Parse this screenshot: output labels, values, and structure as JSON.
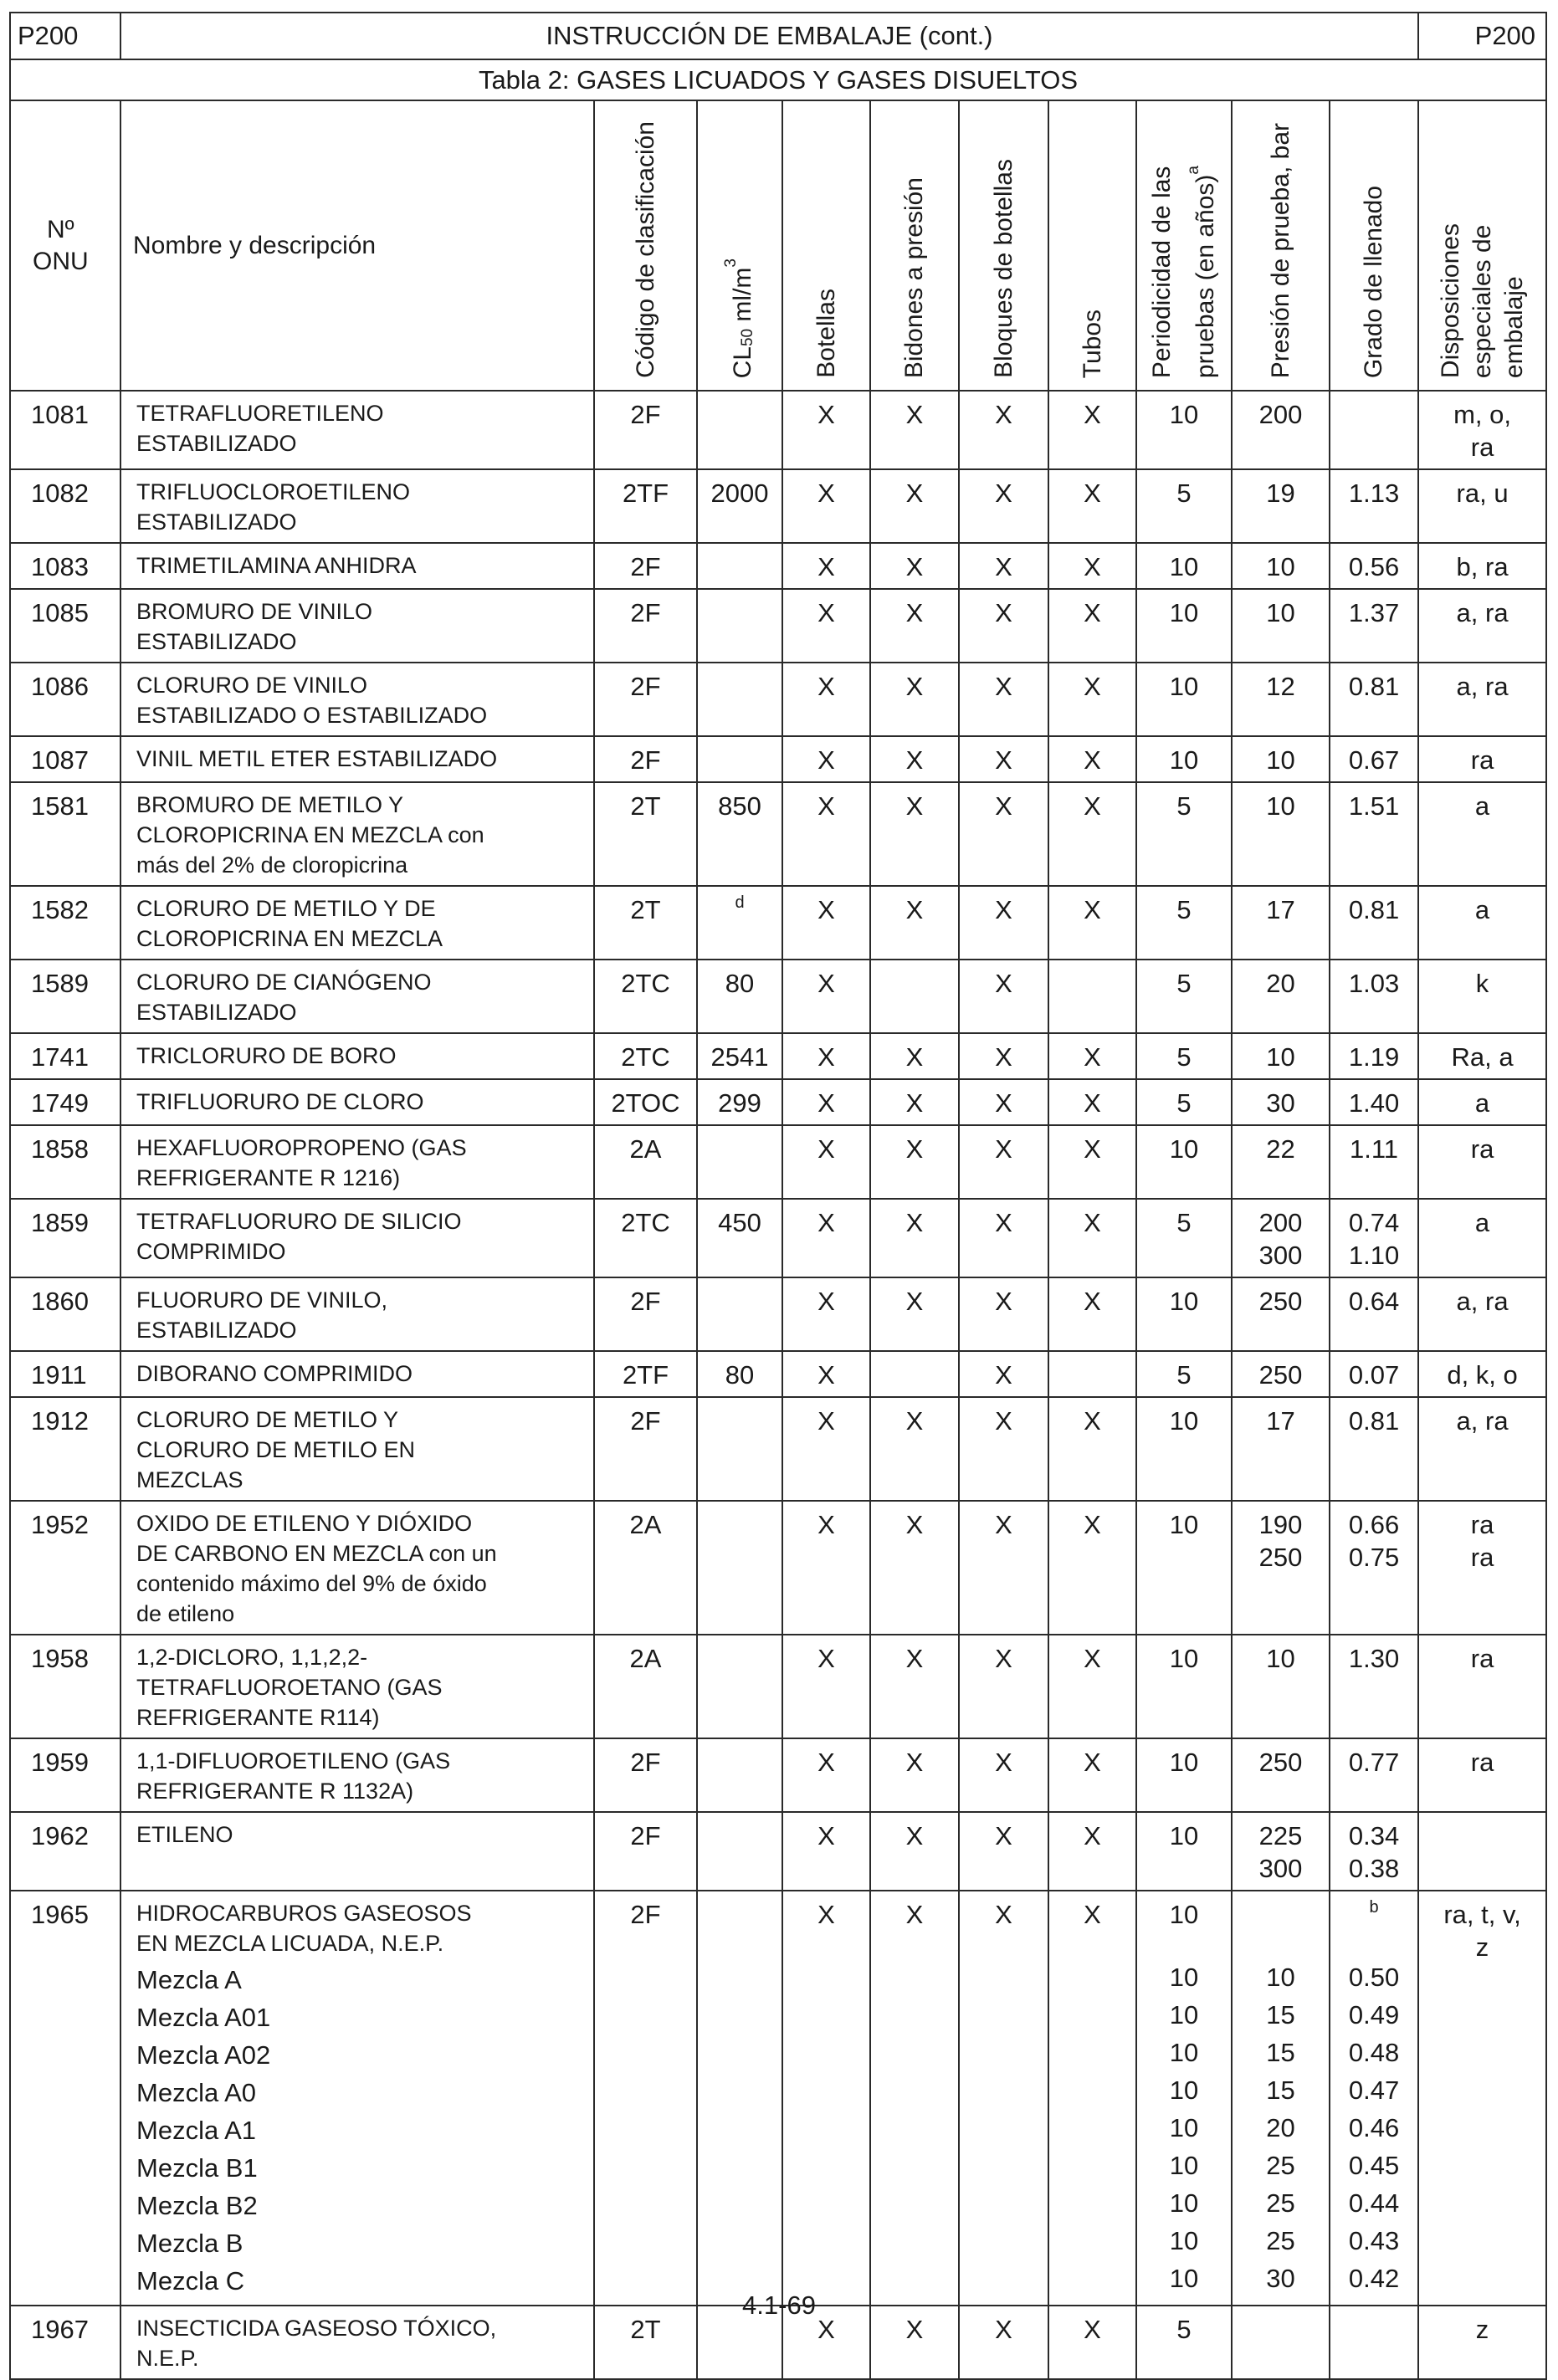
{
  "header": {
    "left_code": "P200",
    "title": "INSTRUCCIÓN DE EMBALAJE (cont.)",
    "right_code": "P200"
  },
  "table_title": "Tabla 2: GASES LICUADOS Y GASES DISUELTOS",
  "columns": {
    "onu": "Nº\nONU",
    "name": "Nombre y descripción",
    "class_code": "Código de clasificación",
    "cl50_prefix": "CL",
    "cl50_sub": "50",
    "cl50_suffix": " ml/m",
    "cl50_sup": "3",
    "cylinders": "Botellas",
    "pressure_drums": "Bidones a presión",
    "bundles": "Bloques de botellas",
    "tubes": "Tubos",
    "test_period": "Periodicidad de las\npruebas (en años)",
    "test_period_sup": "a",
    "test_pressure": "Presión de prueba, bar",
    "filling": "Grado de llenado",
    "special": "Disposiciones\nespeciales de\nembalaje"
  },
  "rows": [
    {
      "onu": "1081",
      "name": [
        "TETRAFLUORETILENO",
        "ESTABILIZADO"
      ],
      "code": "2F",
      "cl50": "",
      "bot": "X",
      "bid": "X",
      "blo": "X",
      "tub": "X",
      "period": [
        "10"
      ],
      "pressure": [
        "200"
      ],
      "fill": [
        ""
      ],
      "special": [
        "m, o,",
        "ra"
      ]
    },
    {
      "onu": "1082",
      "name": [
        "TRIFLUOCLOROETILENO",
        "ESTABILIZADO"
      ],
      "code": "2TF",
      "cl50": "2000",
      "bot": "X",
      "bid": "X",
      "blo": "X",
      "tub": "X",
      "period": [
        "5"
      ],
      "pressure": [
        "19"
      ],
      "fill": [
        "1.13"
      ],
      "special": [
        "ra, u"
      ]
    },
    {
      "onu": "1083",
      "name": [
        "TRIMETILAMINA ANHIDRA"
      ],
      "code": "2F",
      "cl50": "",
      "bot": "X",
      "bid": "X",
      "blo": "X",
      "tub": "X",
      "period": [
        "10"
      ],
      "pressure": [
        "10"
      ],
      "fill": [
        "0.56"
      ],
      "special": [
        "b, ra"
      ]
    },
    {
      "onu": "1085",
      "name": [
        "BROMURO DE VINILO",
        "ESTABILIZADO"
      ],
      "code": "2F",
      "cl50": "",
      "bot": "X",
      "bid": "X",
      "blo": "X",
      "tub": "X",
      "period": [
        "10"
      ],
      "pressure": [
        "10"
      ],
      "fill": [
        "1.37"
      ],
      "special": [
        "a, ra"
      ]
    },
    {
      "onu": "1086",
      "name": [
        "CLORURO DE VINILO",
        "ESTABILIZADO O ESTABILIZADO"
      ],
      "code": "2F",
      "cl50": "",
      "bot": "X",
      "bid": "X",
      "blo": "X",
      "tub": "X",
      "period": [
        "10"
      ],
      "pressure": [
        "12"
      ],
      "fill": [
        "0.81"
      ],
      "special": [
        "a, ra"
      ]
    },
    {
      "onu": "1087",
      "name": [
        "VINIL METIL ETER ESTABILIZADO"
      ],
      "code": "2F",
      "cl50": "",
      "bot": "X",
      "bid": "X",
      "blo": "X",
      "tub": "X",
      "period": [
        "10"
      ],
      "pressure": [
        "10"
      ],
      "fill": [
        "0.67"
      ],
      "special": [
        "ra"
      ]
    },
    {
      "onu": "1581",
      "name": [
        "BROMURO DE METILO Y",
        "CLOROPICRINA EN MEZCLA con",
        "más del 2% de cloropicrina"
      ],
      "code": "2T",
      "cl50": "850",
      "bot": "X",
      "bid": "X",
      "blo": "X",
      "tub": "X",
      "period": [
        "5"
      ],
      "pressure": [
        "10"
      ],
      "fill": [
        "1.51"
      ],
      "special": [
        "a"
      ]
    },
    {
      "onu": "1582",
      "name": [
        "CLORURO DE METILO Y DE",
        "CLOROPICRINA EN MEZCLA"
      ],
      "code": "2T",
      "cl50": "",
      "cl50_note": "d",
      "bot": "X",
      "bid": "X",
      "blo": "X",
      "tub": "X",
      "period": [
        "5"
      ],
      "pressure": [
        "17"
      ],
      "fill": [
        "0.81"
      ],
      "special": [
        "a"
      ]
    },
    {
      "onu": "1589",
      "name": [
        "CLORURO DE CIANÓGENO",
        "ESTABILIZADO"
      ],
      "code": "2TC",
      "cl50": "80",
      "bot": "X",
      "bid": "",
      "blo": "X",
      "tub": "",
      "period": [
        "5"
      ],
      "pressure": [
        "20"
      ],
      "fill": [
        "1.03"
      ],
      "special": [
        "k"
      ]
    },
    {
      "onu": "1741",
      "name": [
        "TRICLORURO DE BORO"
      ],
      "code": "2TC",
      "cl50": "2541",
      "bot": "X",
      "bid": "X",
      "blo": "X",
      "tub": "X",
      "period": [
        "5"
      ],
      "pressure": [
        "10"
      ],
      "fill": [
        "1.19"
      ],
      "special": [
        "Ra, a"
      ]
    },
    {
      "onu": "1749",
      "name": [
        "TRIFLUORURO DE CLORO"
      ],
      "code": "2TOC",
      "cl50": "299",
      "bot": "X",
      "bid": "X",
      "blo": "X",
      "tub": "X",
      "period": [
        "5"
      ],
      "pressure": [
        "30"
      ],
      "fill": [
        "1.40"
      ],
      "special": [
        "a"
      ]
    },
    {
      "onu": "1858",
      "name": [
        "HEXAFLUOROPROPENO (GAS",
        "REFRIGERANTE R 1216)"
      ],
      "code": "2A",
      "cl50": "",
      "bot": "X",
      "bid": "X",
      "blo": "X",
      "tub": "X",
      "period": [
        "10"
      ],
      "pressure": [
        "22"
      ],
      "fill": [
        "1.11"
      ],
      "special": [
        "ra"
      ]
    },
    {
      "onu": "1859",
      "name": [
        "TETRAFLUORURO DE SILICIO",
        "COMPRIMIDO"
      ],
      "code": "2TC",
      "cl50": "450",
      "bot": "X",
      "bid": "X",
      "blo": "X",
      "tub": "X",
      "period": [
        "5"
      ],
      "pressure": [
        "200",
        "300"
      ],
      "fill": [
        "0.74",
        "1.10"
      ],
      "special": [
        "a"
      ]
    },
    {
      "onu": "1860",
      "name": [
        "FLUORURO DE VINILO,",
        "ESTABILIZADO"
      ],
      "code": "2F",
      "cl50": "",
      "bot": "X",
      "bid": "X",
      "blo": "X",
      "tub": "X",
      "period": [
        "10"
      ],
      "pressure": [
        "250"
      ],
      "fill": [
        "0.64"
      ],
      "special": [
        "a, ra"
      ]
    },
    {
      "onu": "1911",
      "name": [
        "DIBORANO COMPRIMIDO"
      ],
      "code": "2TF",
      "cl50": "80",
      "bot": "X",
      "bid": "",
      "blo": "X",
      "tub": "",
      "period": [
        "5"
      ],
      "pressure": [
        "250"
      ],
      "fill": [
        "0.07"
      ],
      "special": [
        "d, k, o"
      ]
    },
    {
      "onu": "1912",
      "name": [
        "CLORURO DE METILO Y",
        "CLORURO DE METILO EN",
        "MEZCLAS"
      ],
      "code": "2F",
      "cl50": "",
      "bot": "X",
      "bid": "X",
      "blo": "X",
      "tub": "X",
      "period": [
        "10"
      ],
      "pressure": [
        "17"
      ],
      "fill": [
        "0.81"
      ],
      "special": [
        "a, ra"
      ]
    },
    {
      "onu": "1952",
      "name": [
        "OXIDO DE ETILENO Y DIÓXIDO",
        "DE CARBONO EN MEZCLA con un",
        "contenido máximo del 9% de óxido",
        "de etileno"
      ],
      "code": "2A",
      "cl50": "",
      "bot": "X",
      "bid": "X",
      "blo": "X",
      "tub": "X",
      "period": [
        "10"
      ],
      "pressure": [
        "190",
        "250"
      ],
      "fill": [
        "0.66",
        "0.75"
      ],
      "special": [
        "ra",
        "ra"
      ]
    },
    {
      "onu": "1958",
      "name": [
        "1,2-DICLORO, 1,1,2,2-",
        "TETRAFLUOROETANO (GAS",
        "REFRIGERANTE R114)"
      ],
      "code": "2A",
      "cl50": "",
      "bot": "X",
      "bid": "X",
      "blo": "X",
      "tub": "X",
      "period": [
        "10"
      ],
      "pressure": [
        "10"
      ],
      "fill": [
        "1.30"
      ],
      "special": [
        "ra"
      ]
    },
    {
      "onu": "1959",
      "name": [
        "1,1-DIFLUOROETILENO (GAS",
        "REFRIGERANTE R 1132A)"
      ],
      "code": "2F",
      "cl50": "",
      "bot": "X",
      "bid": "X",
      "blo": "X",
      "tub": "X",
      "period": [
        "10"
      ],
      "pressure": [
        "250"
      ],
      "fill": [
        "0.77"
      ],
      "special": [
        "ra"
      ]
    },
    {
      "onu": "1962",
      "name": [
        "ETILENO"
      ],
      "code": "2F",
      "cl50": "",
      "bot": "X",
      "bid": "X",
      "blo": "X",
      "tub": "X",
      "period": [
        "10"
      ],
      "pressure": [
        "225",
        "300"
      ],
      "fill": [
        "0.34",
        "0.38"
      ],
      "special": [
        ""
      ]
    }
  ],
  "row_1965": {
    "onu": "1965",
    "name": [
      "HIDROCARBUROS GASEOSOS",
      "EN MEZCLA LICUADA, N.E.P."
    ],
    "code": "2F",
    "bot": "X",
    "bid": "X",
    "blo": "X",
    "tub": "X",
    "period": "10",
    "fill_note": "b",
    "special": [
      "ra, t, v,",
      "z"
    ],
    "mixtures": [
      {
        "name": "Mezcla A",
        "period": "10",
        "pressure": "10",
        "fill": "0.50"
      },
      {
        "name": "Mezcla A01",
        "period": "10",
        "pressure": "15",
        "fill": "0.49"
      },
      {
        "name": "Mezcla A02",
        "period": "10",
        "pressure": "15",
        "fill": "0.48"
      },
      {
        "name": "Mezcla A0",
        "period": "10",
        "pressure": "15",
        "fill": "0.47"
      },
      {
        "name": "Mezcla A1",
        "period": "10",
        "pressure": "20",
        "fill": "0.46"
      },
      {
        "name": "Mezcla B1",
        "period": "10",
        "pressure": "25",
        "fill": "0.45"
      },
      {
        "name": "Mezcla B2",
        "period": "10",
        "pressure": "25",
        "fill": "0.44"
      },
      {
        "name": "Mezcla B",
        "period": "10",
        "pressure": "25",
        "fill": "0.43"
      },
      {
        "name": "Mezcla C",
        "period": "10",
        "pressure": "30",
        "fill": "0.42"
      }
    ]
  },
  "row_1967": {
    "onu": "1967",
    "name": [
      "INSECTICIDA GASEOSO TÓXICO,",
      "N.E.P."
    ],
    "code": "2T",
    "bot": "X",
    "bid": "X",
    "blo": "X",
    "tub": "X",
    "period": "5",
    "special": "z"
  },
  "page_number": "4.1-69"
}
